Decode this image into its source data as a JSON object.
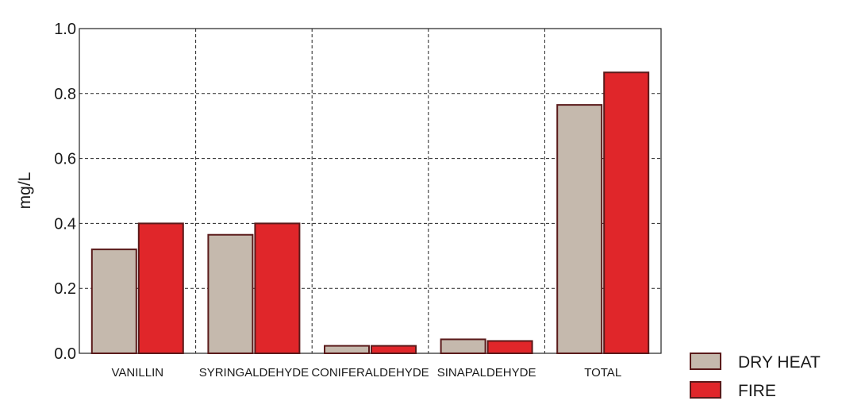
{
  "chart_data": {
    "type": "bar",
    "title": "",
    "xlabel": "",
    "ylabel": "mg/L",
    "ylim": [
      0,
      1.0
    ],
    "yticks": [
      "0.0",
      "0.2",
      "0.4",
      "0.6",
      "0.8",
      "1.0"
    ],
    "categories": [
      "VANILLIN",
      "SYRINGALDEHYDE",
      "CONIFERALDEHYDE",
      "SINAPALDEHYDE",
      "TOTAL"
    ],
    "series": [
      {
        "name": "DRY HEAT",
        "color": "#c5b9ad",
        "values": [
          0.32,
          0.365,
          0.023,
          0.043,
          0.765
        ]
      },
      {
        "name": "FIRE",
        "color": "#e0262a",
        "values": [
          0.4,
          0.4,
          0.023,
          0.038,
          0.865
        ]
      }
    ],
    "grid": true,
    "legend_position": "bottom-right",
    "colors": {
      "bar_stroke": "#5a1a1a",
      "grid": "#222222",
      "frame": "#222222"
    }
  }
}
